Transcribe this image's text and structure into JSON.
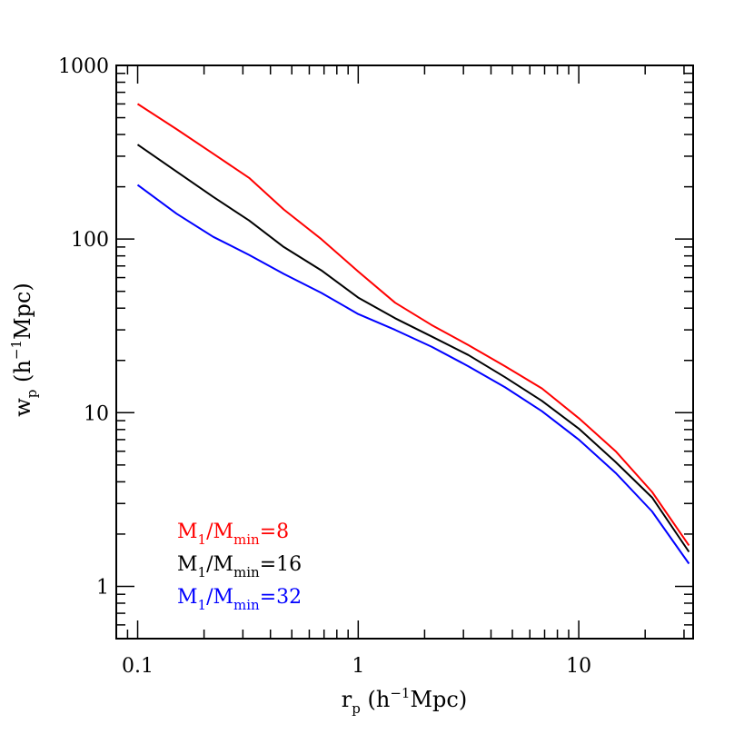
{
  "chart_data": {
    "type": "line",
    "x_scale": "log",
    "y_scale": "log",
    "xlim": [
      0.08,
      33
    ],
    "ylim": [
      0.5,
      1000
    ],
    "x_ticks": [
      0.1,
      1,
      10
    ],
    "x_tick_labels": [
      "0.1",
      "1",
      "10"
    ],
    "y_ticks": [
      1,
      10,
      100,
      1000
    ],
    "y_tick_labels": [
      "1",
      "10",
      "100",
      "1000"
    ],
    "xlabel": {
      "main": "r",
      "sub": "p",
      "rest": " (h",
      "sup": "−1",
      "tail": "Mpc)"
    },
    "ylabel": {
      "main": "w",
      "sub": "p",
      "rest": " (h",
      "sup": "−1",
      "tail": "Mpc)"
    },
    "grid": false,
    "legend_position": "bottom-left",
    "series": [
      {
        "name": "M1/Mmin=8",
        "color": "#ff0000",
        "legend": {
          "a": "M",
          "a_sub": "1",
          "b": "/M",
          "b_sub": "min",
          "c": "=8"
        },
        "x": [
          0.1,
          0.15,
          0.22,
          0.32,
          0.46,
          0.68,
          1.0,
          1.47,
          2.15,
          3.16,
          4.64,
          6.81,
          10.0,
          14.7,
          21.5,
          31.6
        ],
        "y": [
          600,
          430,
          310,
          225,
          148,
          100,
          65,
          43,
          32,
          24.5,
          18.5,
          13.8,
          9.3,
          6.0,
          3.5,
          1.72
        ]
      },
      {
        "name": "M1/Mmin=16",
        "color": "#000000",
        "legend": {
          "a": "M",
          "a_sub": "1",
          "b": "/M",
          "b_sub": "min",
          "c": "=16"
        },
        "x": [
          0.1,
          0.15,
          0.22,
          0.32,
          0.46,
          0.68,
          1.0,
          1.47,
          2.15,
          3.16,
          4.64,
          6.81,
          10.0,
          14.7,
          21.5,
          31.6
        ],
        "y": [
          350,
          245,
          175,
          128,
          90,
          66,
          46,
          35,
          27.5,
          21.5,
          16.0,
          11.7,
          8.1,
          5.2,
          3.25,
          1.58
        ]
      },
      {
        "name": "M1/Mmin=32",
        "color": "#0000ff",
        "legend": {
          "a": "M",
          "a_sub": "1",
          "b": "/M",
          "b_sub": "min",
          "c": "=32"
        },
        "x": [
          0.1,
          0.15,
          0.22,
          0.32,
          0.46,
          0.68,
          1.0,
          1.47,
          2.15,
          3.16,
          4.64,
          6.81,
          10.0,
          14.7,
          21.5,
          31.6
        ],
        "y": [
          205,
          140,
          103,
          81,
          63,
          49,
          37,
          30,
          24,
          18.5,
          14.0,
          10.2,
          7.0,
          4.5,
          2.7,
          1.35
        ]
      }
    ]
  }
}
